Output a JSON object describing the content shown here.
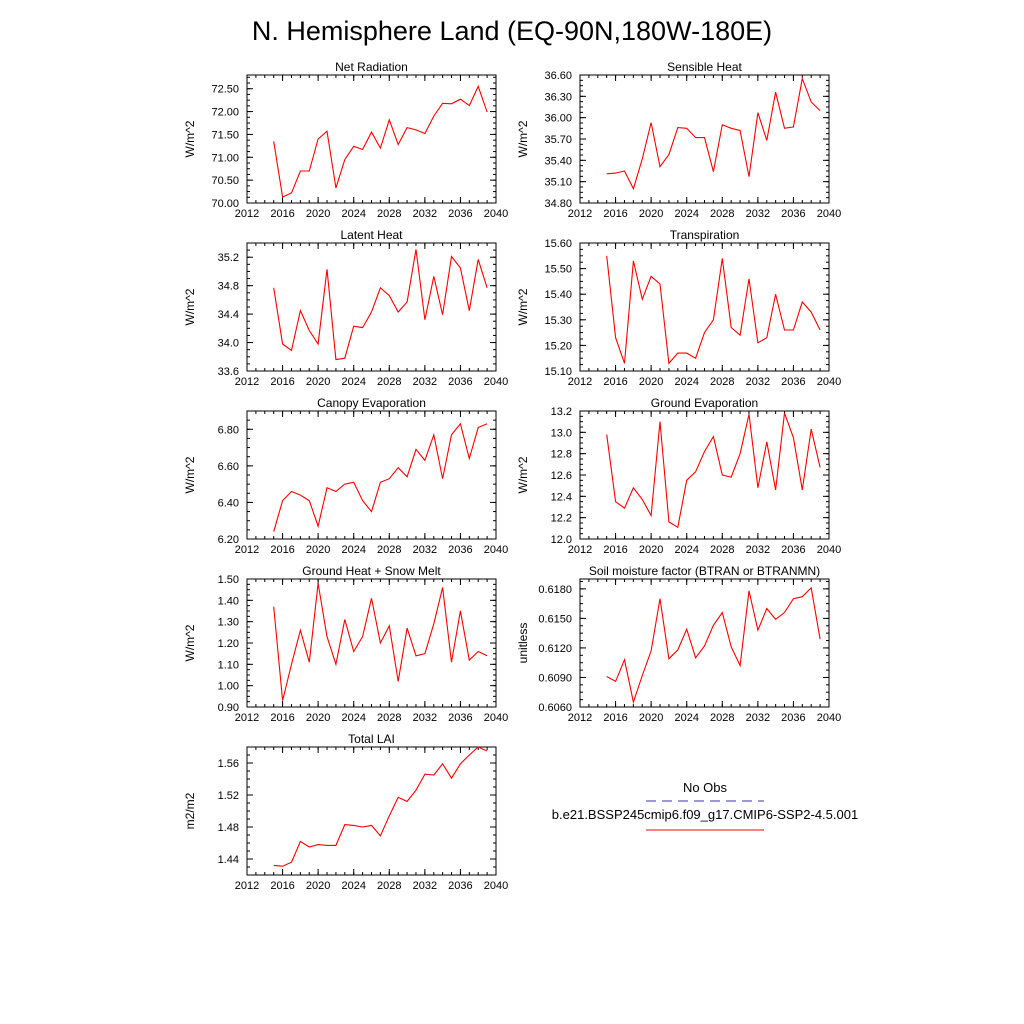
{
  "figure": {
    "title": "N. Hemisphere Land (EQ-90N,180W-180E)"
  },
  "legend": {
    "obs_label": "No Obs",
    "obs_color": "#3333aa",
    "model_label": "b.e21.BSSP245cmip6.f09_g17.CMIP6-SSP2-4.5.001",
    "model_color": "#ff0000"
  },
  "chart_data": [
    {
      "type": "line",
      "title": "Net Radiation",
      "xlabel": "",
      "ylabel": "W/m^2",
      "xlim": [
        2012,
        2040
      ],
      "ylim": [
        70.0,
        72.8
      ],
      "xticks": [
        "2012",
        "2016",
        "2020",
        "2024",
        "2028",
        "2032",
        "2036",
        "2040"
      ],
      "yticks": [
        "70.00",
        "70.50",
        "71.00",
        "71.50",
        "72.00",
        "72.50"
      ],
      "grid": false,
      "series": [
        {
          "color": "#ff0000",
          "x": [
            2015,
            2016,
            2017,
            2018,
            2019,
            2020,
            2021,
            2022,
            2023,
            2024,
            2025,
            2026,
            2027,
            2028,
            2029,
            2030,
            2031,
            2032,
            2033,
            2034,
            2035,
            2036,
            2037,
            2038,
            2039
          ],
          "values": [
            71.35,
            70.13,
            70.22,
            70.7,
            70.7,
            71.4,
            71.57,
            70.33,
            70.95,
            71.24,
            71.17,
            71.55,
            71.2,
            71.82,
            71.28,
            71.65,
            71.6,
            71.52,
            71.9,
            72.18,
            72.17,
            72.27,
            72.13,
            72.55,
            71.99
          ]
        }
      ]
    },
    {
      "type": "line",
      "title": "Sensible Heat",
      "xlabel": "",
      "ylabel": "W/m^2",
      "xlim": [
        2012,
        2040
      ],
      "ylim": [
        34.8,
        36.6
      ],
      "xticks": [
        "2012",
        "2016",
        "2020",
        "2024",
        "2028",
        "2032",
        "2036",
        "2040"
      ],
      "yticks": [
        "34.80",
        "35.10",
        "35.40",
        "35.70",
        "36.00",
        "36.30",
        "36.60"
      ],
      "grid": false,
      "series": [
        {
          "color": "#ff0000",
          "x": [
            2015,
            2016,
            2017,
            2018,
            2019,
            2020,
            2021,
            2022,
            2023,
            2024,
            2025,
            2026,
            2027,
            2028,
            2029,
            2030,
            2031,
            2032,
            2033,
            2034,
            2035,
            2036,
            2037,
            2038,
            2039
          ],
          "values": [
            35.21,
            35.22,
            35.25,
            35.0,
            35.42,
            35.93,
            35.31,
            35.48,
            35.86,
            35.85,
            35.72,
            35.72,
            35.24,
            35.9,
            35.85,
            35.82,
            35.17,
            36.07,
            35.68,
            36.36,
            35.85,
            35.87,
            36.55,
            36.22,
            36.1
          ]
        }
      ]
    },
    {
      "type": "line",
      "title": "Latent Heat",
      "xlabel": "",
      "ylabel": "W/m^2",
      "xlim": [
        2012,
        2040
      ],
      "ylim": [
        33.6,
        35.4
      ],
      "xticks": [
        "2012",
        "2016",
        "2020",
        "2024",
        "2028",
        "2032",
        "2036",
        "2040"
      ],
      "yticks": [
        "33.6",
        "34.0",
        "34.4",
        "34.8",
        "35.2"
      ],
      "grid": false,
      "series": [
        {
          "color": "#ff0000",
          "x": [
            2015,
            2016,
            2017,
            2018,
            2019,
            2020,
            2021,
            2022,
            2023,
            2024,
            2025,
            2026,
            2027,
            2028,
            2029,
            2030,
            2031,
            2032,
            2033,
            2034,
            2035,
            2036,
            2037,
            2038,
            2039
          ],
          "values": [
            34.77,
            33.98,
            33.89,
            34.45,
            34.17,
            33.98,
            35.03,
            33.76,
            33.78,
            34.23,
            34.21,
            34.43,
            34.77,
            34.66,
            34.43,
            34.57,
            35.31,
            34.32,
            34.93,
            34.39,
            35.21,
            35.05,
            34.45,
            35.17,
            34.77
          ]
        }
      ]
    },
    {
      "type": "line",
      "title": "Transpiration",
      "xlabel": "",
      "ylabel": "W/m^2",
      "xlim": [
        2012,
        2040
      ],
      "ylim": [
        15.1,
        15.6
      ],
      "xticks": [
        "2012",
        "2016",
        "2020",
        "2024",
        "2028",
        "2032",
        "2036",
        "2040"
      ],
      "yticks": [
        "15.10",
        "15.20",
        "15.30",
        "15.40",
        "15.50",
        "15.60"
      ],
      "grid": false,
      "series": [
        {
          "color": "#ff0000",
          "x": [
            2015,
            2016,
            2017,
            2018,
            2019,
            2020,
            2021,
            2022,
            2023,
            2024,
            2025,
            2026,
            2027,
            2028,
            2029,
            2030,
            2031,
            2032,
            2033,
            2034,
            2035,
            2036,
            2037,
            2038,
            2039
          ],
          "values": [
            15.55,
            15.23,
            15.13,
            15.53,
            15.38,
            15.47,
            15.44,
            15.13,
            15.17,
            15.17,
            15.15,
            15.25,
            15.3,
            15.54,
            15.27,
            15.24,
            15.46,
            15.21,
            15.23,
            15.4,
            15.26,
            15.26,
            15.37,
            15.33,
            15.26
          ]
        }
      ]
    },
    {
      "type": "line",
      "title": "Canopy Evaporation",
      "xlabel": "",
      "ylabel": "W/m^2",
      "xlim": [
        2012,
        2040
      ],
      "ylim": [
        6.2,
        6.9
      ],
      "xticks": [
        "2012",
        "2016",
        "2020",
        "2024",
        "2028",
        "2032",
        "2036",
        "2040"
      ],
      "yticks": [
        "6.20",
        "6.40",
        "6.60",
        "6.80"
      ],
      "grid": false,
      "series": [
        {
          "color": "#ff0000",
          "x": [
            2015,
            2016,
            2017,
            2018,
            2019,
            2020,
            2021,
            2022,
            2023,
            2024,
            2025,
            2026,
            2027,
            2028,
            2029,
            2030,
            2031,
            2032,
            2033,
            2034,
            2035,
            2036,
            2037,
            2038,
            2039
          ],
          "values": [
            6.24,
            6.41,
            6.46,
            6.44,
            6.41,
            6.27,
            6.48,
            6.46,
            6.5,
            6.51,
            6.41,
            6.35,
            6.51,
            6.53,
            6.59,
            6.54,
            6.69,
            6.63,
            6.77,
            6.53,
            6.77,
            6.83,
            6.64,
            6.81,
            6.83
          ]
        }
      ]
    },
    {
      "type": "line",
      "title": "Ground Evaporation",
      "xlabel": "",
      "ylabel": "W/m^2",
      "xlim": [
        2012,
        2040
      ],
      "ylim": [
        12.0,
        13.2
      ],
      "xticks": [
        "2012",
        "2016",
        "2020",
        "2024",
        "2028",
        "2032",
        "2036",
        "2040"
      ],
      "yticks": [
        "12.0",
        "12.2",
        "12.4",
        "12.6",
        "12.8",
        "13.0",
        "13.2"
      ],
      "grid": false,
      "series": [
        {
          "color": "#ff0000",
          "x": [
            2015,
            2016,
            2017,
            2018,
            2019,
            2020,
            2021,
            2022,
            2023,
            2024,
            2025,
            2026,
            2027,
            2028,
            2029,
            2030,
            2031,
            2032,
            2033,
            2034,
            2035,
            2036,
            2037,
            2038,
            2039
          ],
          "values": [
            12.98,
            12.35,
            12.29,
            12.48,
            12.37,
            12.22,
            13.1,
            12.16,
            12.11,
            12.55,
            12.63,
            12.82,
            12.96,
            12.6,
            12.58,
            12.8,
            13.17,
            12.48,
            12.91,
            12.46,
            13.18,
            12.95,
            12.46,
            13.03,
            12.67
          ]
        }
      ]
    },
    {
      "type": "line",
      "title": "Ground Heat + Snow Melt",
      "xlabel": "",
      "ylabel": "W/m^2",
      "xlim": [
        2012,
        2040
      ],
      "ylim": [
        0.9,
        1.5
      ],
      "xticks": [
        "2012",
        "2016",
        "2020",
        "2024",
        "2028",
        "2032",
        "2036",
        "2040"
      ],
      "yticks": [
        "0.90",
        "1.00",
        "1.10",
        "1.20",
        "1.30",
        "1.40",
        "1.50"
      ],
      "grid": false,
      "series": [
        {
          "color": "#ff0000",
          "x": [
            2015,
            2016,
            2017,
            2018,
            2019,
            2020,
            2021,
            2022,
            2023,
            2024,
            2025,
            2026,
            2027,
            2028,
            2029,
            2030,
            2031,
            2032,
            2033,
            2034,
            2035,
            2036,
            2037,
            2038,
            2039
          ],
          "values": [
            1.37,
            0.93,
            1.1,
            1.26,
            1.11,
            1.48,
            1.23,
            1.1,
            1.31,
            1.16,
            1.23,
            1.41,
            1.2,
            1.28,
            1.02,
            1.27,
            1.14,
            1.15,
            1.29,
            1.46,
            1.11,
            1.35,
            1.12,
            1.16,
            1.14
          ]
        }
      ]
    },
    {
      "type": "line",
      "title": "Soil moisture factor (BTRAN or BTRANMN)",
      "xlabel": "",
      "ylabel": "unitless",
      "xlim": [
        2012,
        2040
      ],
      "ylim": [
        0.606,
        0.619
      ],
      "xticks": [
        "2012",
        "2016",
        "2020",
        "2024",
        "2028",
        "2032",
        "2036",
        "2040"
      ],
      "yticks": [
        "0.6060",
        "0.6090",
        "0.6120",
        "0.6150",
        "0.6180"
      ],
      "grid": false,
      "series": [
        {
          "color": "#ff0000",
          "x": [
            2015,
            2016,
            2017,
            2018,
            2019,
            2020,
            2021,
            2022,
            2023,
            2024,
            2025,
            2026,
            2027,
            2028,
            2029,
            2030,
            2031,
            2032,
            2033,
            2034,
            2035,
            2036,
            2037,
            2038,
            2039
          ],
          "values": [
            0.6091,
            0.6086,
            0.6108,
            0.6065,
            0.6092,
            0.6117,
            0.617,
            0.6109,
            0.6118,
            0.6139,
            0.611,
            0.6122,
            0.6143,
            0.6156,
            0.6121,
            0.6102,
            0.6178,
            0.6138,
            0.616,
            0.6149,
            0.6156,
            0.617,
            0.6172,
            0.6181,
            0.6129
          ]
        }
      ]
    },
    {
      "type": "line",
      "title": "Total LAI",
      "xlabel": "",
      "ylabel": "m2/m2",
      "xlim": [
        2012,
        2040
      ],
      "ylim": [
        1.42,
        1.58
      ],
      "xticks": [
        "2012",
        "2016",
        "2020",
        "2024",
        "2028",
        "2032",
        "2036",
        "2040"
      ],
      "yticks": [
        "1.44",
        "1.48",
        "1.52",
        "1.56"
      ],
      "grid": false,
      "series": [
        {
          "color": "#ff0000",
          "x": [
            2015,
            2016,
            2017,
            2018,
            2019,
            2020,
            2021,
            2022,
            2023,
            2024,
            2025,
            2026,
            2027,
            2028,
            2029,
            2030,
            2031,
            2032,
            2033,
            2034,
            2035,
            2036,
            2037,
            2038,
            2039
          ],
          "values": [
            1.432,
            1.431,
            1.436,
            1.462,
            1.455,
            1.458,
            1.457,
            1.457,
            1.483,
            1.482,
            1.48,
            1.482,
            1.469,
            1.494,
            1.517,
            1.512,
            1.526,
            1.546,
            1.545,
            1.559,
            1.541,
            1.559,
            1.57,
            1.58,
            1.575
          ]
        }
      ]
    }
  ]
}
